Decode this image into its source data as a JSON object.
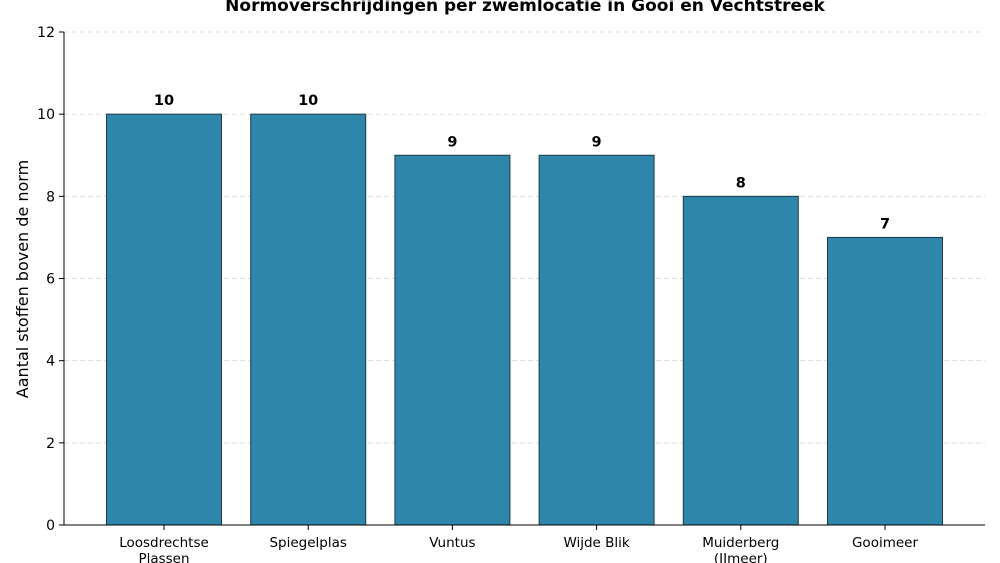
{
  "chart_data": {
    "type": "bar",
    "title": "Normoverschrijdingen per zwemlocatie in Gooi en Vechtstreek",
    "xlabel": "",
    "ylabel": "Aantal stoffen boven de norm",
    "categories": [
      [
        "Loosdrechtse",
        "Plassen"
      ],
      [
        "Spiegelplas"
      ],
      [
        "Vuntus"
      ],
      [
        "Wijde Blik"
      ],
      [
        "Muiderberg",
        "(IJmeer)"
      ],
      [
        "Gooimeer"
      ]
    ],
    "values": [
      10,
      10,
      9,
      9,
      8,
      7
    ],
    "data_labels": [
      "10",
      "10",
      "9",
      "9",
      "8",
      "7"
    ],
    "ylim": [
      0,
      12
    ],
    "yticks": [
      "0",
      "2",
      "4",
      "6",
      "8",
      "10",
      "12"
    ],
    "grid": "horizontal dashed",
    "bar_color": "#2e86ab",
    "bar_edge_color": "#1f3a4a"
  }
}
